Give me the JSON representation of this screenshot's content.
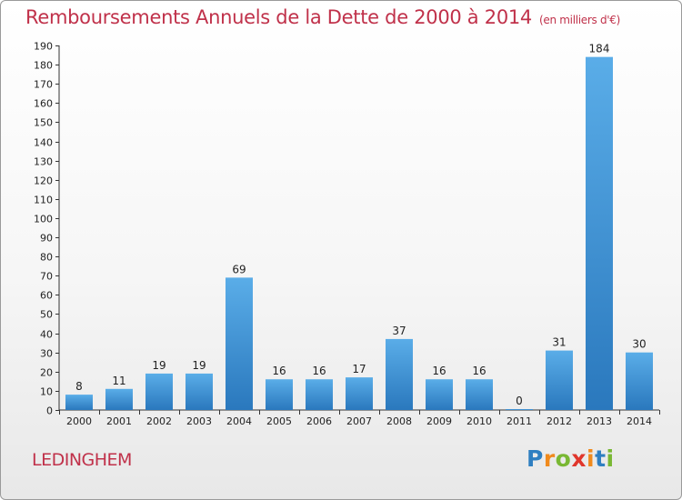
{
  "header": {
    "title": "Remboursements Annuels de la Dette de 2000 à 2014",
    "unit": "(en milliers d'€)"
  },
  "footer": {
    "commune": "LEDINGHEM"
  },
  "logo": {
    "letters": [
      "P",
      "r",
      "o",
      "x",
      "i",
      "t",
      "i"
    ],
    "colors": [
      "#2f7fc1",
      "#f08a1d",
      "#79b833",
      "#e0362c",
      "#f08a1d",
      "#2f7fc1",
      "#79b833"
    ]
  },
  "chart_data": {
    "type": "bar",
    "categories": [
      "2000",
      "2001",
      "2002",
      "2003",
      "2004",
      "2005",
      "2006",
      "2007",
      "2008",
      "2009",
      "2010",
      "2011",
      "2012",
      "2013",
      "2014"
    ],
    "values": [
      8,
      11,
      19,
      19,
      69,
      16,
      16,
      17,
      37,
      16,
      16,
      0,
      31,
      184,
      30
    ],
    "ylim": [
      0,
      190
    ],
    "ytick_step": 10,
    "grid": false,
    "bar_color": "#3a8fd6"
  }
}
